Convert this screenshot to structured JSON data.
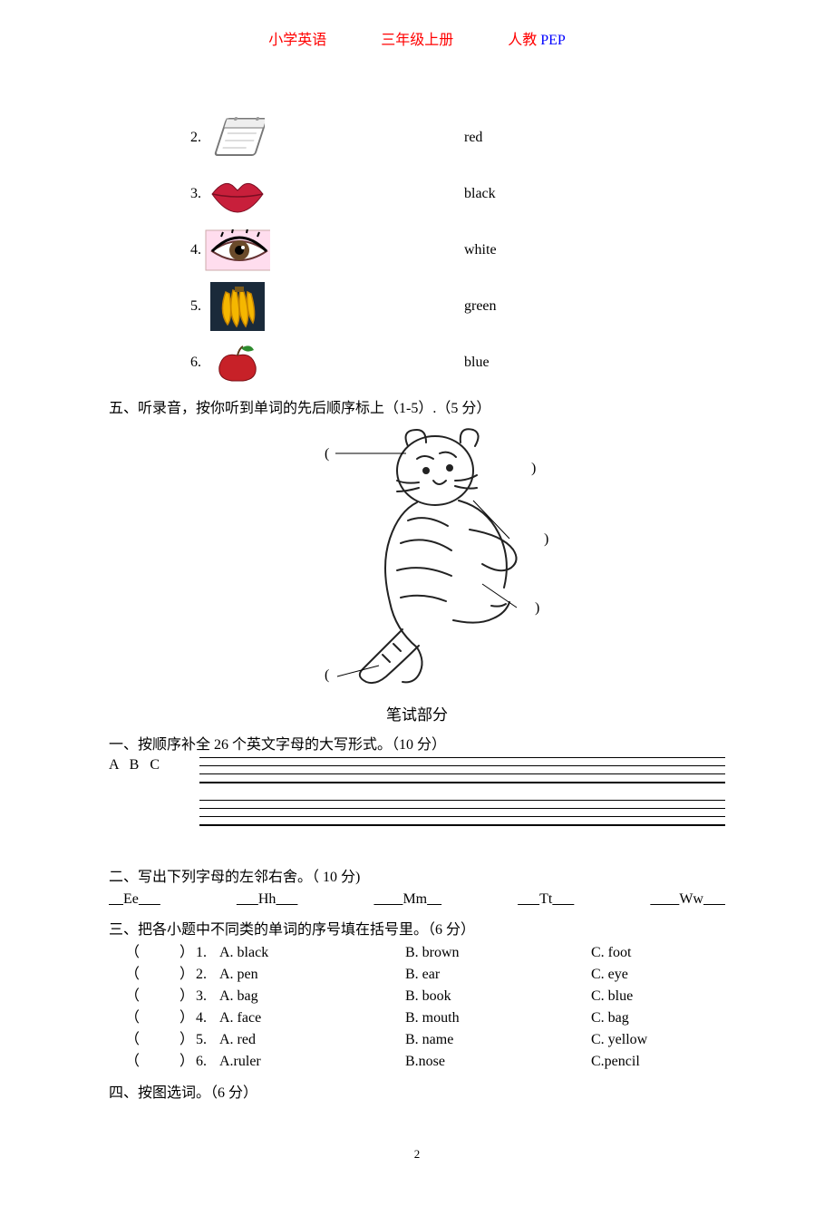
{
  "header": {
    "left": "小学英语",
    "mid": "三年级上册",
    "right_cn": "人教 ",
    "right_en": "PEP"
  },
  "match": {
    "rows": [
      {
        "num": "2.",
        "icon": "calendar",
        "word": "red"
      },
      {
        "num": "3.",
        "icon": "lips",
        "word": "black"
      },
      {
        "num": "4.",
        "icon": "eye",
        "word": "white"
      },
      {
        "num": "5.",
        "icon": "bananas",
        "word": "green"
      },
      {
        "num": "6.",
        "icon": "apple",
        "word": "blue"
      }
    ]
  },
  "section5_title": "五、听录音，按你听到单词的先后顺序标上（1-5）.（5 分）",
  "written_title": "笔试部分",
  "written_1": "一、按顺序补全 26 个英文字母的大写形式。（10 分）",
  "abc_label": "A  B  C",
  "written_2": "二、写出下列字母的左邻右舍。（ 10 分)",
  "neighbors": [
    {
      "pre": "__",
      "letter": "Ee",
      "post": "___"
    },
    {
      "pre": "___",
      "letter": "Hh",
      "post": " __"
    },
    {
      "pre": "____",
      "letter": "Mm",
      "post": "__"
    },
    {
      "pre": "___",
      "letter": "Tt",
      "post": "___"
    },
    {
      "pre": "____",
      "letter": "Ww",
      "post": "___"
    }
  ],
  "written_3": "三、把各小题中不同类的单词的序号填在括号里。（6 分）",
  "choices": [
    {
      "n": "1.",
      "A": "black",
      "B": "brown",
      "C": "foot"
    },
    {
      "n": "2.",
      "A": "pen",
      "B": "ear",
      "C": "eye"
    },
    {
      "n": "3.",
      "A": "bag",
      "B": "book",
      "C": "blue"
    },
    {
      "n": "4.",
      "A": "face",
      "B": "mouth",
      "C": "bag"
    },
    {
      "n": "5.",
      "A": "red",
      "B": "name",
      "C": "yellow"
    },
    {
      "n": "6.",
      "A": "A.ruler",
      "B": "B.nose",
      "C": "C.pencil",
      "raw": true
    }
  ],
  "written_4": "四、按图选词。（6 分）",
  "page_num": "2",
  "colors": {
    "red": "#ff0000",
    "blue": "#0000ff",
    "lips": "#c81f3b",
    "eye_iris": "#6a4a2a",
    "banana": "#f5b700",
    "banana_stroke": "#c48300",
    "apple": "#c72128",
    "leaf": "#2e8b2e",
    "calendar_border": "#777",
    "tiger_stroke": "#222"
  }
}
